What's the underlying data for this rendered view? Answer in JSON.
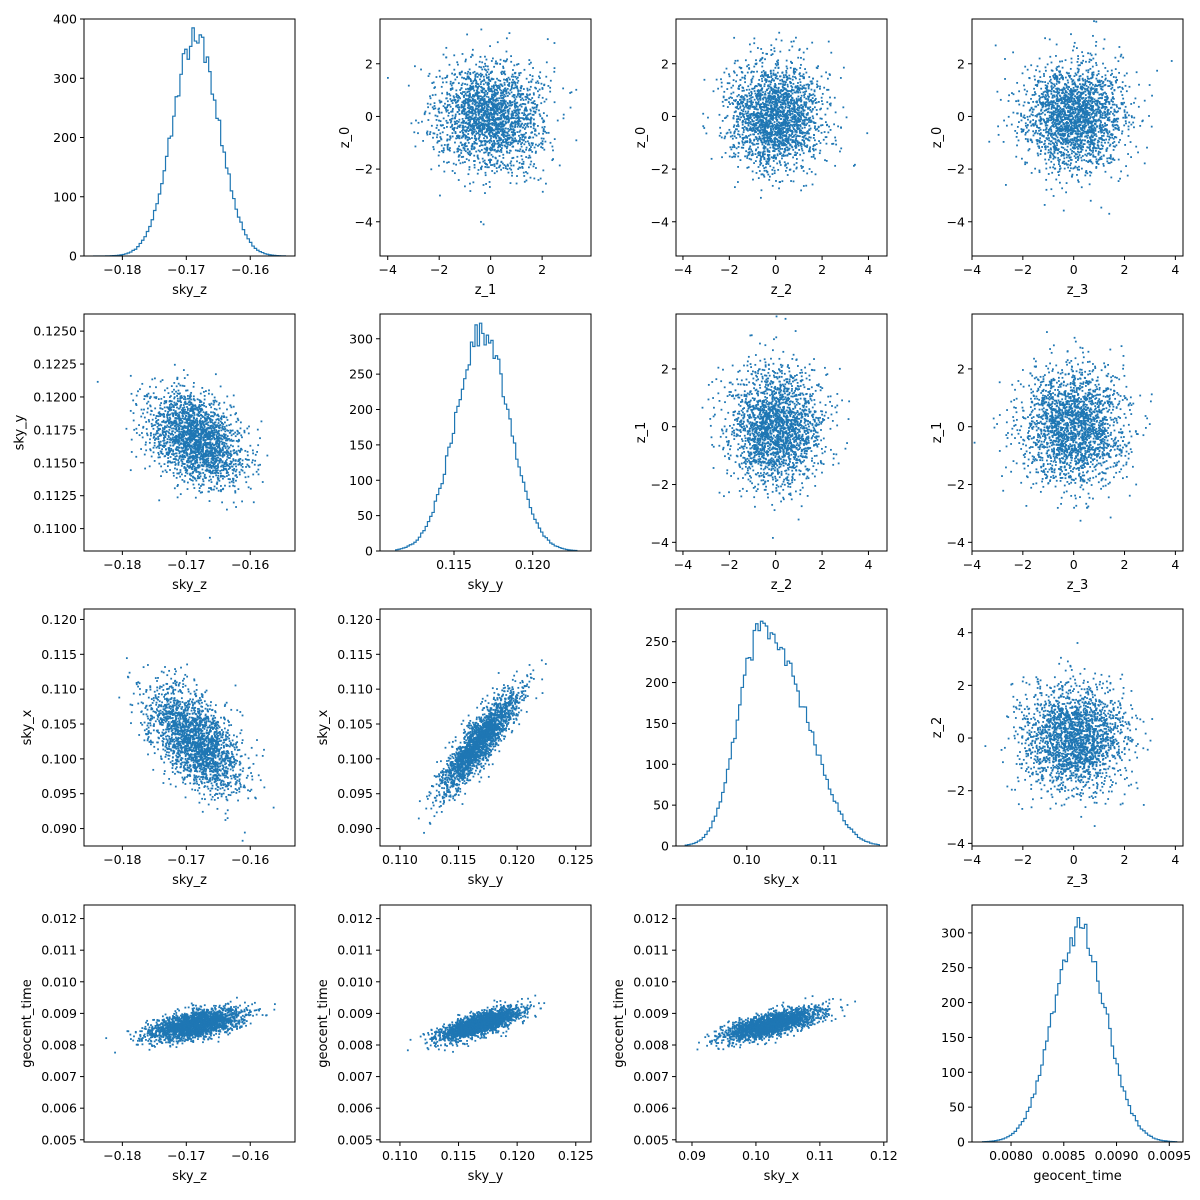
{
  "chart_data": [
    {
      "type": "histogram",
      "row": 0,
      "col": 0,
      "xlabel": "sky_z",
      "ylabel": "",
      "xlim": [
        -0.186,
        -0.153
      ],
      "ylim": [
        0,
        400
      ],
      "xticks": [
        -0.18,
        -0.17,
        -0.16
      ],
      "xtick_labels": [
        "−0.18",
        "−0.17",
        "−0.16"
      ],
      "yticks": [
        0,
        100,
        200,
        300,
        400
      ],
      "ytick_labels": [
        "0",
        "100",
        "200",
        "300",
        "400"
      ],
      "bin_range": [
        -0.1845,
        -0.1545
      ],
      "peak": 385,
      "series": [
        {
          "mean": -0.1685,
          "sd": 0.0036
        }
      ]
    },
    {
      "type": "scatter",
      "row": 0,
      "col": 1,
      "xlabel": "z_1",
      "ylabel": "z_0",
      "xlim": [
        -4.3,
        3.9
      ],
      "ylim": [
        -5.3,
        3.7
      ],
      "xticks": [
        -4,
        -2,
        0,
        2
      ],
      "xtick_labels": [
        "−4",
        "−2",
        "0",
        "2"
      ],
      "yticks": [
        -4,
        -2,
        0,
        2
      ],
      "ytick_labels": [
        "−4",
        "−2",
        "0",
        "2"
      ],
      "series": [
        {
          "mx": 0,
          "my": 0,
          "sx": 1,
          "sy": 1,
          "rho": 0,
          "n": 2200
        }
      ]
    },
    {
      "type": "scatter",
      "row": 0,
      "col": 2,
      "xlabel": "z_2",
      "ylabel": "z_0",
      "xlim": [
        -4.3,
        4.8
      ],
      "ylim": [
        -5.3,
        3.7
      ],
      "xticks": [
        -4,
        -2,
        0,
        2,
        4
      ],
      "xtick_labels": [
        "−4",
        "−2",
        "0",
        "2",
        "4"
      ],
      "yticks": [
        -4,
        -2,
        0,
        2
      ],
      "ytick_labels": [
        "−4",
        "−2",
        "0",
        "2"
      ],
      "series": [
        {
          "mx": 0,
          "my": 0,
          "sx": 1,
          "sy": 1,
          "rho": 0,
          "n": 2200
        }
      ]
    },
    {
      "type": "scatter",
      "row": 0,
      "col": 3,
      "xlabel": "z_3",
      "ylabel": "z_0",
      "xlim": [
        -4.0,
        4.3
      ],
      "ylim": [
        -5.3,
        3.7
      ],
      "xticks": [
        -4,
        -2,
        0,
        2,
        4
      ],
      "xtick_labels": [
        "−4",
        "−2",
        "0",
        "2",
        "4"
      ],
      "yticks": [
        -4,
        -2,
        0,
        2
      ],
      "ytick_labels": [
        "−4",
        "−2",
        "0",
        "2"
      ],
      "series": [
        {
          "mx": 0,
          "my": 0,
          "sx": 1,
          "sy": 1,
          "rho": 0,
          "n": 2200
        }
      ]
    },
    {
      "type": "scatter",
      "row": 1,
      "col": 0,
      "xlabel": "sky_z",
      "ylabel": "sky_y",
      "xlim": [
        -0.186,
        -0.153
      ],
      "ylim": [
        0.1083,
        0.1263
      ],
      "xticks": [
        -0.18,
        -0.17,
        -0.16
      ],
      "xtick_labels": [
        "−0.18",
        "−0.17",
        "−0.16"
      ],
      "yticks": [
        0.11,
        0.1125,
        0.115,
        0.1175,
        0.12,
        0.1225,
        0.125
      ],
      "ytick_labels": [
        "0.1100",
        "0.1125",
        "0.1150",
        "0.1175",
        "0.1200",
        "0.1225",
        "0.1250"
      ],
      "series": [
        {
          "mx": -0.1685,
          "my": 0.1168,
          "sx": 0.0036,
          "sy": 0.0017,
          "rho": -0.35,
          "n": 2200
        }
      ]
    },
    {
      "type": "histogram",
      "row": 1,
      "col": 1,
      "xlabel": "sky_y",
      "ylabel": "",
      "xlim": [
        0.1103,
        0.1237
      ],
      "ylim": [
        0,
        335
      ],
      "xticks": [
        0.115,
        0.12
      ],
      "xtick_labels": [
        "0.115",
        "0.120"
      ],
      "yticks": [
        0,
        50,
        100,
        150,
        200,
        250,
        300
      ],
      "ytick_labels": [
        "0",
        "50",
        "100",
        "150",
        "200",
        "250",
        "300"
      ],
      "bin_range": [
        0.1113,
        0.1228
      ],
      "peak": 322,
      "series": [
        {
          "mean": 0.1168,
          "sd": 0.0017
        }
      ]
    },
    {
      "type": "scatter",
      "row": 1,
      "col": 2,
      "xlabel": "z_2",
      "ylabel": "z_1",
      "xlim": [
        -4.3,
        4.8
      ],
      "ylim": [
        -4.3,
        3.9
      ],
      "xticks": [
        -4,
        -2,
        0,
        2,
        4
      ],
      "xtick_labels": [
        "−4",
        "−2",
        "0",
        "2",
        "4"
      ],
      "yticks": [
        -4,
        -2,
        0,
        2
      ],
      "ytick_labels": [
        "−4",
        "−2",
        "0",
        "2"
      ],
      "series": [
        {
          "mx": 0,
          "my": 0,
          "sx": 1,
          "sy": 1,
          "rho": 0,
          "n": 2200
        }
      ]
    },
    {
      "type": "scatter",
      "row": 1,
      "col": 3,
      "xlabel": "z_3",
      "ylabel": "z_1",
      "xlim": [
        -4.0,
        4.3
      ],
      "ylim": [
        -4.3,
        3.9
      ],
      "xticks": [
        -4,
        -2,
        0,
        2,
        4
      ],
      "xtick_labels": [
        "−4",
        "−2",
        "0",
        "2",
        "4"
      ],
      "yticks": [
        -4,
        -2,
        0,
        2
      ],
      "ytick_labels": [
        "−4",
        "−2",
        "0",
        "2"
      ],
      "series": [
        {
          "mx": 0,
          "my": 0,
          "sx": 1,
          "sy": 1,
          "rho": 0,
          "n": 2200
        }
      ]
    },
    {
      "type": "scatter",
      "row": 2,
      "col": 0,
      "xlabel": "sky_z",
      "ylabel": "sky_x",
      "xlim": [
        -0.186,
        -0.153
      ],
      "ylim": [
        0.0875,
        0.1215
      ],
      "xticks": [
        -0.18,
        -0.17,
        -0.16
      ],
      "xtick_labels": [
        "−0.18",
        "−0.17",
        "−0.16"
      ],
      "yticks": [
        0.09,
        0.095,
        0.1,
        0.105,
        0.11,
        0.115,
        0.12
      ],
      "ytick_labels": [
        "0.090",
        "0.095",
        "0.100",
        "0.105",
        "0.110",
        "0.115",
        "0.120"
      ],
      "series": [
        {
          "mx": -0.1685,
          "my": 0.1025,
          "sx": 0.0036,
          "sy": 0.0037,
          "rho": -0.55,
          "n": 2200
        }
      ]
    },
    {
      "type": "scatter",
      "row": 2,
      "col": 1,
      "xlabel": "sky_y",
      "ylabel": "sky_x",
      "xlim": [
        0.1083,
        0.1263
      ],
      "ylim": [
        0.0875,
        0.1215
      ],
      "xticks": [
        0.11,
        0.115,
        0.12,
        0.125
      ],
      "xtick_labels": [
        "0.110",
        "0.115",
        "0.120",
        "0.125"
      ],
      "yticks": [
        0.09,
        0.095,
        0.1,
        0.105,
        0.11,
        0.115,
        0.12
      ],
      "ytick_labels": [
        "0.090",
        "0.095",
        "0.100",
        "0.105",
        "0.110",
        "0.115",
        "0.120"
      ],
      "series": [
        {
          "mx": 0.1168,
          "my": 0.1025,
          "sx": 0.0017,
          "sy": 0.0037,
          "rho": 0.88,
          "n": 2200
        }
      ]
    },
    {
      "type": "histogram",
      "row": 2,
      "col": 2,
      "xlabel": "sky_x",
      "ylabel": "",
      "xlim": [
        0.0908,
        0.1182
      ],
      "ylim": [
        0,
        290
      ],
      "xticks": [
        0.1,
        0.11
      ],
      "xtick_labels": [
        "0.10",
        "0.11"
      ],
      "yticks": [
        0,
        50,
        100,
        150,
        200,
        250
      ],
      "ytick_labels": [
        "0",
        "50",
        "100",
        "150",
        "200",
        "250"
      ],
      "bin_range": [
        0.092,
        0.1172
      ],
      "peak": 275,
      "series": [
        {
          "mean": 0.1012,
          "sd": 0.0028,
          "w": 0.55
        },
        {
          "mean": 0.1062,
          "sd": 0.0036,
          "w": 0.45
        }
      ]
    },
    {
      "type": "scatter",
      "row": 2,
      "col": 3,
      "xlabel": "z_3",
      "ylabel": "z_2",
      "xlim": [
        -4.0,
        4.3
      ],
      "ylim": [
        -4.1,
        4.9
      ],
      "xticks": [
        -4,
        -2,
        0,
        2,
        4
      ],
      "xtick_labels": [
        "−4",
        "−2",
        "0",
        "2",
        "4"
      ],
      "yticks": [
        -4,
        -2,
        0,
        2,
        4
      ],
      "ytick_labels": [
        "−4",
        "−2",
        "0",
        "2",
        "4"
      ],
      "series": [
        {
          "mx": 0,
          "my": 0,
          "sx": 1,
          "sy": 1,
          "rho": 0,
          "n": 2200
        }
      ]
    },
    {
      "type": "scatter",
      "row": 3,
      "col": 0,
      "xlabel": "sky_z",
      "ylabel": "geocent_time",
      "xlim": [
        -0.186,
        -0.153
      ],
      "ylim": [
        0.00493,
        0.01243
      ],
      "xticks": [
        -0.18,
        -0.17,
        -0.16
      ],
      "xtick_labels": [
        "−0.18",
        "−0.17",
        "−0.16"
      ],
      "yticks": [
        0.005,
        0.006,
        0.007,
        0.008,
        0.009,
        0.01,
        0.011,
        0.012
      ],
      "ytick_labels": [
        "0.005",
        "0.006",
        "0.007",
        "0.008",
        "0.009",
        "0.010",
        "0.011",
        "0.012"
      ],
      "series": [
        {
          "mx": -0.1685,
          "my": 0.00865,
          "sx": 0.0036,
          "sy": 0.00025,
          "rho": 0.55,
          "n": 2200
        }
      ]
    },
    {
      "type": "scatter",
      "row": 3,
      "col": 1,
      "xlabel": "sky_y",
      "ylabel": "geocent_time",
      "xlim": [
        0.1083,
        0.1263
      ],
      "ylim": [
        0.00493,
        0.01243
      ],
      "xticks": [
        0.11,
        0.115,
        0.12,
        0.125
      ],
      "xtick_labels": [
        "0.110",
        "0.115",
        "0.120",
        "0.125"
      ],
      "yticks": [
        0.005,
        0.006,
        0.007,
        0.008,
        0.009,
        0.01,
        0.011,
        0.012
      ],
      "ytick_labels": [
        "0.005",
        "0.006",
        "0.007",
        "0.008",
        "0.009",
        "0.010",
        "0.011",
        "0.012"
      ],
      "series": [
        {
          "mx": 0.1168,
          "my": 0.00865,
          "sx": 0.0017,
          "sy": 0.00025,
          "rho": 0.75,
          "n": 2200
        }
      ]
    },
    {
      "type": "scatter",
      "row": 3,
      "col": 2,
      "xlabel": "sky_x",
      "ylabel": "geocent_time",
      "xlim": [
        0.0875,
        0.1205
      ],
      "ylim": [
        0.00493,
        0.01243
      ],
      "xticks": [
        0.09,
        0.1,
        0.11,
        0.12
      ],
      "xtick_labels": [
        "0.09",
        "0.10",
        "0.11",
        "0.12"
      ],
      "yticks": [
        0.005,
        0.006,
        0.007,
        0.008,
        0.009,
        0.01,
        0.011,
        0.012
      ],
      "ytick_labels": [
        "0.005",
        "0.006",
        "0.007",
        "0.008",
        "0.009",
        "0.010",
        "0.011",
        "0.012"
      ],
      "series": [
        {
          "mx": 0.1025,
          "my": 0.00865,
          "sx": 0.0037,
          "sy": 0.00025,
          "rho": 0.7,
          "n": 2200
        }
      ]
    },
    {
      "type": "histogram",
      "row": 3,
      "col": 3,
      "xlabel": "geocent_time",
      "ylabel": "",
      "xlim": [
        0.00763,
        0.00963
      ],
      "ylim": [
        0,
        340
      ],
      "xticks": [
        0.008,
        0.0085,
        0.009,
        0.0095
      ],
      "xtick_labels": [
        "0.0080",
        "0.0085",
        "0.0090",
        "0.0095"
      ],
      "yticks": [
        0,
        50,
        100,
        150,
        200,
        250,
        300
      ],
      "ytick_labels": [
        "0",
        "50",
        "100",
        "150",
        "200",
        "250",
        "300"
      ],
      "bin_range": [
        0.00773,
        0.00957
      ],
      "peak": 322,
      "series": [
        {
          "mean": 0.00865,
          "sd": 0.00025
        }
      ]
    }
  ]
}
